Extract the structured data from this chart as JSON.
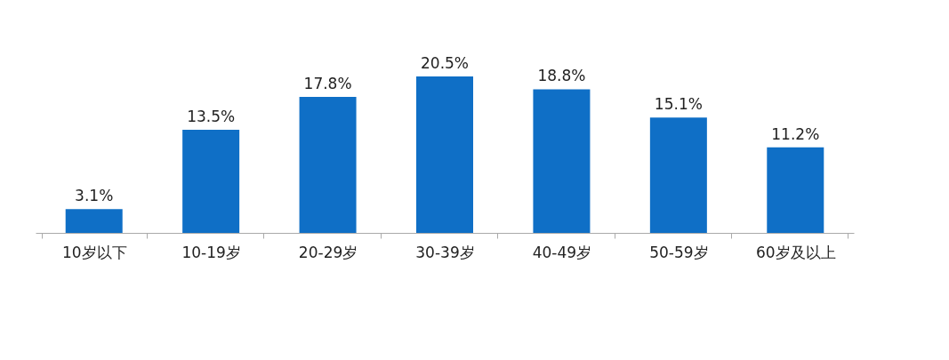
{
  "chart_data": {
    "type": "bar",
    "categories": [
      "10岁以下",
      "10-19岁",
      "20-29岁",
      "30-39岁",
      "40-49岁",
      "50-59岁",
      "60岁及以上"
    ],
    "values": [
      3.1,
      13.5,
      17.8,
      20.5,
      18.8,
      15.1,
      11.2
    ],
    "value_labels": [
      "3.1%",
      "13.5%",
      "17.8%",
      "20.5%",
      "18.8%",
      "15.1%",
      "11.2%"
    ],
    "color": "#0f6fc6",
    "grid": false
  }
}
